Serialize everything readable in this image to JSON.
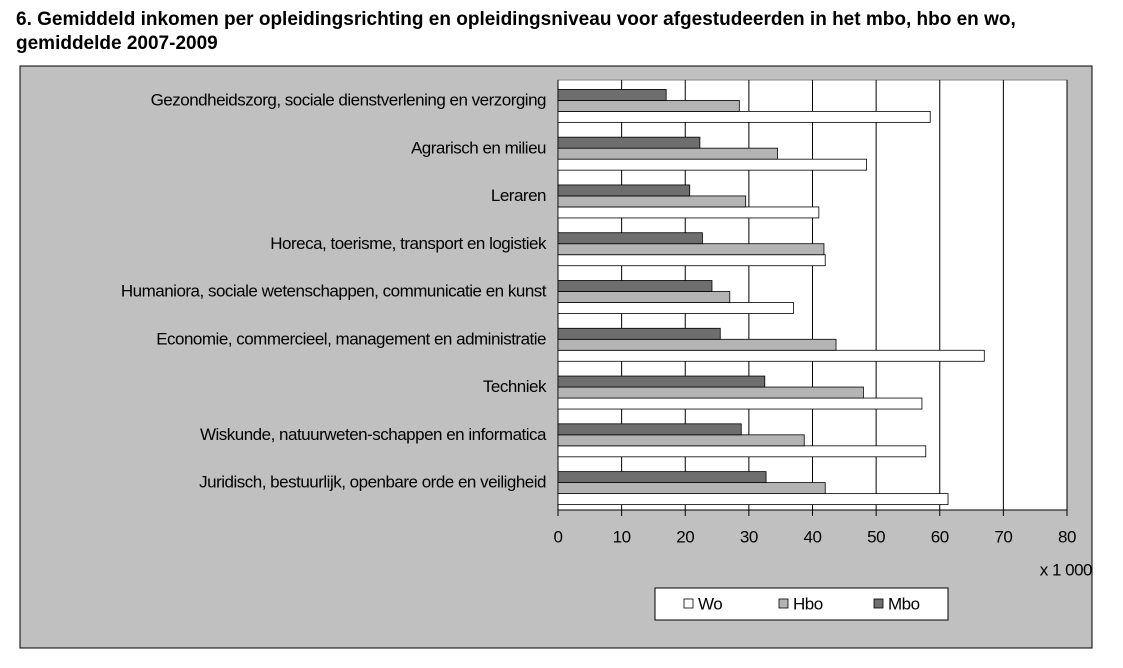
{
  "chart_data": {
    "type": "hbar",
    "title": "6. Gemiddeld inkomen per opleidingsrichting en opleidingsniveau voor afgestudeerden in het mbo, hbo en wo, gemiddelde 2007-2009",
    "x_label": "x 1 000",
    "categories": [
      "Gezondheidszorg, sociale dienstverlening en verzorging",
      "Agrarisch en milieu",
      "Leraren",
      "Horeca, toerisme, transport en logistiek",
      "Humaniora, sociale wetenschappen, communicatie en kunst",
      "Economie, commercieel, management en administratie",
      "Techniek",
      "Wiskunde, natuurweten-schappen en informatica",
      "Juridisch, bestuurlijk, openbare orde en veiligheid"
    ],
    "series": [
      {
        "name": "Wo",
        "color": "#ffffff",
        "values": [
          58.5,
          48.5,
          41,
          42,
          37,
          67,
          57.2,
          57.8,
          61.3
        ]
      },
      {
        "name": "Hbo",
        "color": "#b4b4b4",
        "values": [
          28.5,
          34.5,
          29.5,
          41.8,
          27,
          43.7,
          48,
          38.7,
          42
        ]
      },
      {
        "name": "Mbo",
        "color": "#6e6e6e",
        "values": [
          17,
          22.3,
          20.7,
          22.7,
          24.2,
          25.5,
          32.5,
          28.8,
          32.7
        ]
      }
    ],
    "xlim": [
      0,
      80
    ],
    "xticks": [
      0,
      10,
      20,
      30,
      40,
      50,
      60,
      70,
      80
    ],
    "grid": true,
    "legend": "bottom"
  }
}
